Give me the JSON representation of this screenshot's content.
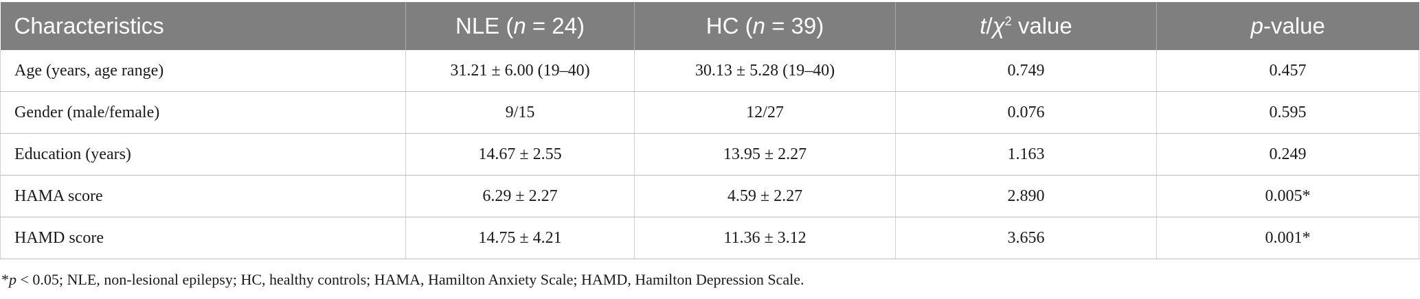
{
  "table": {
    "headers": {
      "characteristics": "Characteristics",
      "nle_prefix": "NLE (",
      "nle_n": "n",
      "nle_suffix": " = 24)",
      "hc_prefix": "HC (",
      "hc_n": "n",
      "hc_suffix": " = 39)",
      "t": "t",
      "slash": "/",
      "chi": "χ",
      "chi_sup": "2",
      "value_suffix": " value",
      "p": "p",
      "p_suffix": "-value"
    },
    "rows": [
      {
        "label": "Age (years, age range)",
        "nle": "31.21 ± 6.00 (19–40)",
        "hc": "30.13 ± 5.28 (19–40)",
        "t": "0.749",
        "p": "0.457"
      },
      {
        "label": "Gender (male/female)",
        "nle": "9/15",
        "hc": "12/27",
        "t": "0.076",
        "p": "0.595"
      },
      {
        "label": "Education (years)",
        "nle": "14.67 ± 2.55",
        "hc": "13.95 ± 2.27",
        "t": "1.163",
        "p": "0.249"
      },
      {
        "label": "HAMA score",
        "nle": "6.29 ± 2.27",
        "hc": "4.59 ± 2.27",
        "t": "2.890",
        "p": "0.005*"
      },
      {
        "label": "HAMD score",
        "nle": "14.75 ± 4.21",
        "hc": "11.36 ± 3.12",
        "t": "3.656",
        "p": "0.001*"
      }
    ]
  },
  "footnote": {
    "star": "*",
    "p": "p",
    "text": " < 0.05; NLE, non-lesional epilepsy; HC, healthy controls; HAMA, Hamilton Anxiety Scale; HAMD, Hamilton Depression Scale."
  },
  "colors": {
    "header_bg": "#7f7f7f",
    "header_text": "#ffffff",
    "body_text": "#1a1a1a"
  }
}
